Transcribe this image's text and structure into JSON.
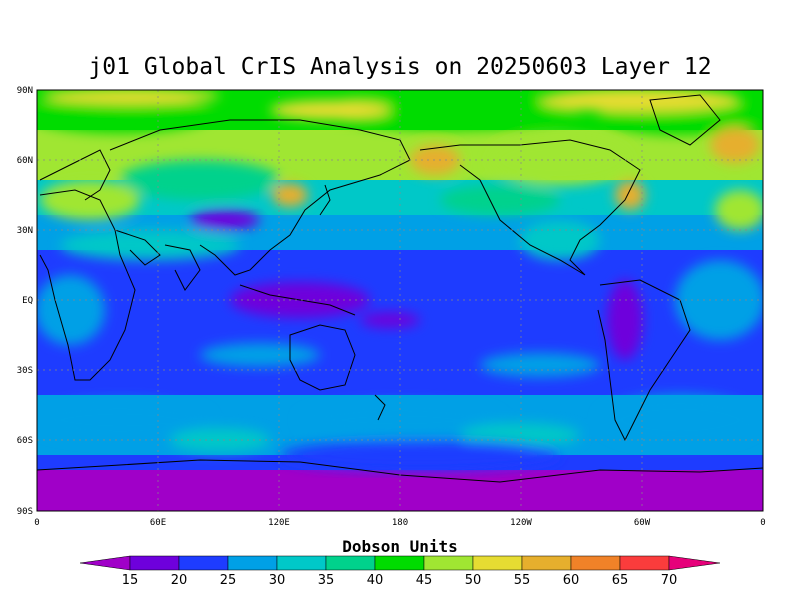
{
  "title": "j01 Global CrIS Analysis on 20250603 Layer 12",
  "colorbar": {
    "title": "Dobson Units",
    "labels": [
      "15",
      "20",
      "25",
      "30",
      "35",
      "40",
      "45",
      "50",
      "55",
      "60",
      "65",
      "70"
    ],
    "colors": [
      "#a000c8",
      "#6e00dc",
      "#1e3cff",
      "#00a0e6",
      "#00c8c8",
      "#00d28c",
      "#00dc00",
      "#a0e632",
      "#e6dc32",
      "#e6af2d",
      "#f08228",
      "#fa3c3c",
      "#e6007a"
    ]
  },
  "axes": {
    "lat_labels": [
      "90N",
      "60N",
      "30N",
      "EQ",
      "30S",
      "60S",
      "90S"
    ],
    "lon_labels": [
      "0",
      "60E",
      "120E",
      "180",
      "120W",
      "60W",
      "0"
    ]
  },
  "map_legend_colors": {
    "very_low": "#a000c8",
    "low": "#6e00dc",
    "blue": "#1e3cff",
    "sky": "#00a0e6",
    "cyan": "#00c8c8",
    "teal": "#00d28c",
    "green": "#00dc00",
    "lime": "#a0e632",
    "yellow": "#e6dc32",
    "orange": "#e6af2d",
    "darkorange": "#f08228"
  }
}
